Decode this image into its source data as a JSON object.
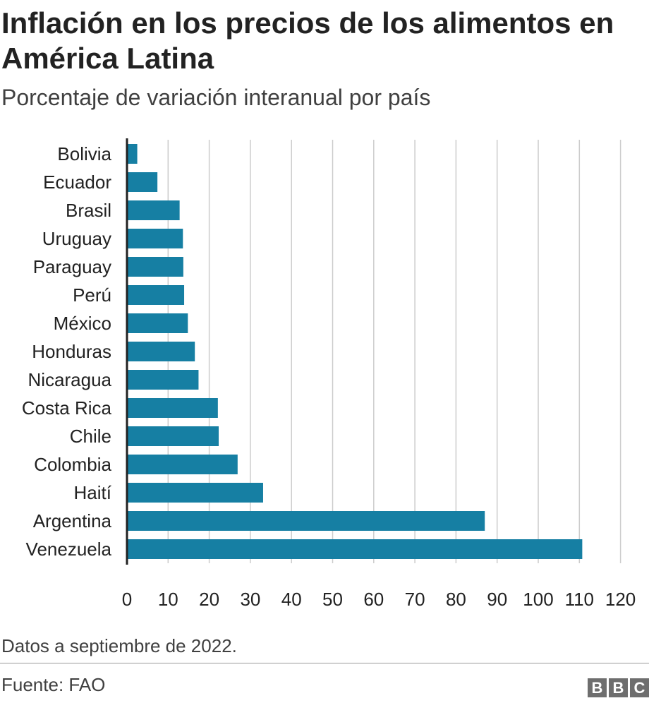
{
  "header": {
    "title": "Inflación en los precios de los alimentos en América Latina",
    "subtitle": "Porcentaje de variación interanual por país"
  },
  "footer": {
    "note": "Datos a septiembre de 2022.",
    "source": "Fuente: FAO",
    "logo_letters": [
      "B",
      "B",
      "C"
    ]
  },
  "colors": {
    "bar": "#167fa3",
    "grid": "#cccccc",
    "axis": "#222222"
  },
  "chart_data": {
    "type": "bar",
    "orientation": "horizontal",
    "title": "Inflación en los precios de los alimentos en América Latina",
    "subtitle": "Porcentaje de variación interanual por país",
    "categories": [
      "Bolivia",
      "Ecuador",
      "Brasil",
      "Uruguay",
      "Paraguay",
      "Perú",
      "México",
      "Honduras",
      "Nicaragua",
      "Costa Rica",
      "Chile",
      "Colombia",
      "Haití",
      "Argentina",
      "Venezuela"
    ],
    "values": [
      2.5,
      7.4,
      12.8,
      13.6,
      13.7,
      13.9,
      14.8,
      16.5,
      17.4,
      22.1,
      22.3,
      26.9,
      33.1,
      87.0,
      110.7
    ],
    "xlim": [
      0,
      120
    ],
    "xticks": [
      0,
      10,
      20,
      30,
      40,
      50,
      60,
      70,
      80,
      90,
      100,
      110,
      120
    ],
    "grid": "vertical",
    "legend": "none"
  }
}
